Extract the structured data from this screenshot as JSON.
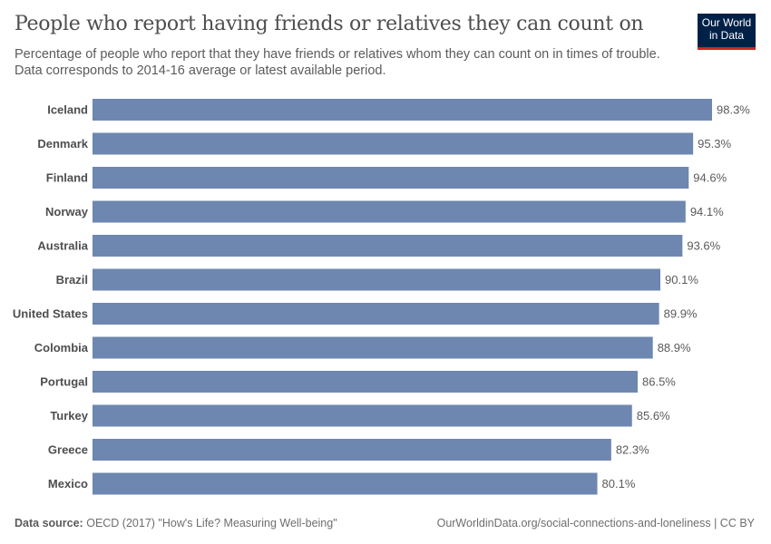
{
  "header": {
    "title": "People who report having friends or relatives they can count on",
    "subtitle": "Percentage of people who report that they have friends or relatives whom they can count on in times of trouble. Data corresponds to 2014-16 average or latest available period.",
    "logo_line1": "Our World",
    "logo_line2": "in Data"
  },
  "footer": {
    "source_label": "Data source:",
    "source_text": "OECD (2017) \"How's Life? Measuring Well-being\"",
    "url": "OurWorldinData.org/social-connections-and-loneliness | CC BY"
  },
  "chart_data": {
    "type": "bar",
    "orientation": "horizontal",
    "categories": [
      "Iceland",
      "Denmark",
      "Finland",
      "Norway",
      "Australia",
      "Brazil",
      "United States",
      "Colombia",
      "Portugal",
      "Turkey",
      "Greece",
      "Mexico"
    ],
    "values": [
      98.3,
      95.3,
      94.6,
      94.1,
      93.6,
      90.1,
      89.9,
      88.9,
      86.5,
      85.6,
      82.3,
      80.1
    ],
    "value_labels": [
      "98.3%",
      "95.3%",
      "94.6%",
      "94.1%",
      "93.6%",
      "90.1%",
      "89.9%",
      "88.9%",
      "86.5%",
      "85.6%",
      "82.3%",
      "80.1%"
    ],
    "xlim": [
      0,
      98.3
    ],
    "grid": false,
    "bar_color": "#6d87b0"
  }
}
